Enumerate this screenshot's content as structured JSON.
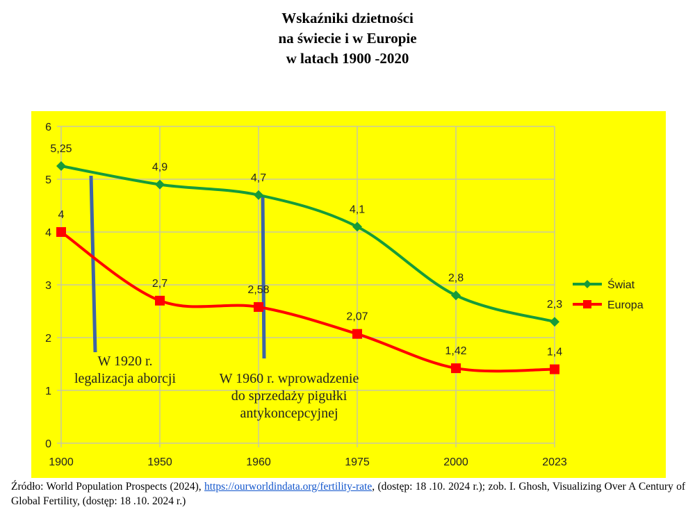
{
  "chart_data": {
    "type": "line",
    "title": [
      "Wskaźniki dzietności",
      "na świecie i w Europie",
      "w latach 1900 -2020"
    ],
    "categories": [
      "1900",
      "1950",
      "1960",
      "1975",
      "2000",
      "2023"
    ],
    "ylim": [
      0,
      6
    ],
    "yticks": [
      "0",
      "1",
      "2",
      "3",
      "4",
      "5",
      "6"
    ],
    "grid": true,
    "legend_position": "right",
    "series": [
      {
        "name": "Świat",
        "color": "#169b3a",
        "marker": "diamond",
        "values": [
          5.25,
          4.9,
          4.7,
          4.1,
          2.8,
          2.3
        ],
        "labels": [
          "5,25",
          "4,9",
          "4,7",
          "4,1",
          "2,8",
          "2,3"
        ]
      },
      {
        "name": "Europa",
        "color": "#ff0000",
        "marker": "square",
        "values": [
          4,
          2.7,
          2.58,
          2.07,
          1.42,
          1.4
        ],
        "labels": [
          "4",
          "2,7",
          "2,58",
          "2,07",
          "1,42",
          "1,4"
        ]
      }
    ],
    "annotations": [
      {
        "lines": [
          "W 1920 r.",
          "legalizacja aborcji"
        ],
        "year": 1920
      },
      {
        "lines": [
          "W 1960 r. wprowadzenie",
          "do sprzedaży pigułki",
          "antykoncepcyjnej"
        ],
        "year": 1960
      }
    ],
    "background_color": "#ffff00"
  },
  "source": {
    "prefix": "Źródło: World Population Prospects (2024), ",
    "link": "https://ourworldindata.org/fertility-rate",
    "suffix": ", (dostęp: 18 .10. 2024 r.);  zob. I. Ghosh, Visualizing Over A Century of Global Fertility, (dostęp: 18 .10. 2024 r.)"
  }
}
